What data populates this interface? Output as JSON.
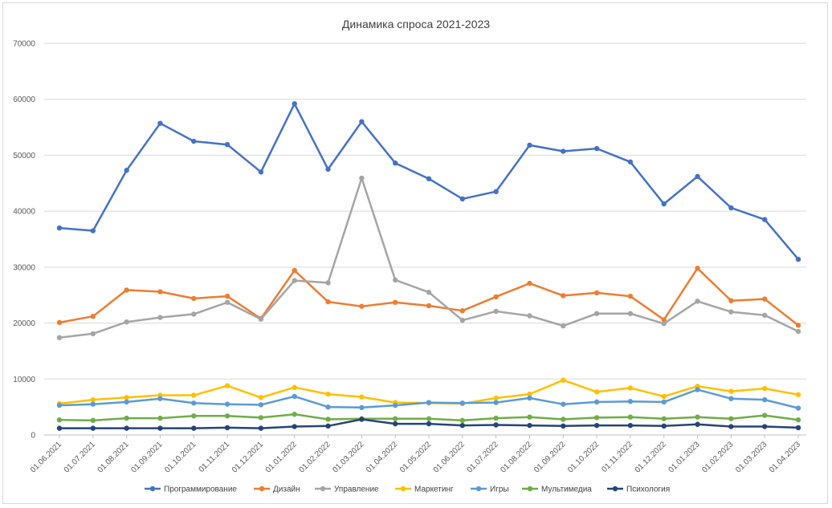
{
  "chart_data": {
    "type": "line",
    "title": "Динамика спроса 2021-2023",
    "xlabel": "",
    "ylabel": "",
    "ylim": [
      0,
      70000
    ],
    "yticks": [
      0,
      10000,
      20000,
      30000,
      40000,
      50000,
      60000,
      70000
    ],
    "ytick_labels": [
      "0",
      "10000",
      "20000",
      "30000",
      "40000",
      "50000",
      "60000",
      "70000"
    ],
    "grid": "horizontal",
    "legend_position": "bottom",
    "categories": [
      "01.06.2021",
      "01.07.2021",
      "01.08.2021",
      "01.09.2021",
      "01.10.2021",
      "01.11.2021",
      "01.12.2021",
      "01.01.2022",
      "01.02.2022",
      "01.03.2022",
      "01.04.2022",
      "01.05.2022",
      "01.06.2022",
      "01.07.2022",
      "01.08.2022",
      "01.09.2022",
      "01.10.2022",
      "01.11.2022",
      "01.12.2022",
      "01.01.2023",
      "01.02.2023",
      "01.03.2023",
      "01.04.2023"
    ],
    "series": [
      {
        "name": "Программирование",
        "color": "#4472c4",
        "values": [
          37000,
          36500,
          47300,
          55700,
          52500,
          51900,
          47000,
          59200,
          47500,
          56000,
          48600,
          45800,
          42200,
          43500,
          51800,
          50700,
          51200,
          48800,
          41300,
          46200,
          40600,
          38500,
          31400
        ]
      },
      {
        "name": "Дизайн",
        "color": "#ed7d31",
        "values": [
          20100,
          21200,
          25900,
          25600,
          24400,
          24800,
          20800,
          29400,
          23800,
          23000,
          23700,
          23100,
          22200,
          24700,
          27100,
          24900,
          25400,
          24800,
          20600,
          29800,
          24000,
          24300,
          19600
        ]
      },
      {
        "name": "Управление",
        "color": "#a5a5a5",
        "values": [
          17400,
          18100,
          20200,
          21000,
          21600,
          23700,
          20700,
          27600,
          27200,
          45900,
          27700,
          25500,
          20500,
          22100,
          21300,
          19500,
          21700,
          21700,
          19900,
          23900,
          22000,
          21400,
          18500
        ]
      },
      {
        "name": "Маркетинг",
        "color": "#ffc000",
        "values": [
          5600,
          6300,
          6700,
          7100,
          7100,
          8800,
          6700,
          8500,
          7300,
          6800,
          5800,
          5700,
          5600,
          6600,
          7300,
          9800,
          7700,
          8400,
          6900,
          8700,
          7800,
          8300,
          7200
        ]
      },
      {
        "name": "Игры",
        "color": "#5b9bd5",
        "values": [
          5300,
          5500,
          5900,
          6500,
          5700,
          5500,
          5400,
          6900,
          5000,
          4900,
          5300,
          5800,
          5700,
          5800,
          6600,
          5500,
          5900,
          6000,
          5900,
          8100,
          6500,
          6300,
          4800
        ]
      },
      {
        "name": "Мультимедиа",
        "color": "#70ad47",
        "values": [
          2700,
          2600,
          3000,
          3000,
          3400,
          3400,
          3100,
          3700,
          2800,
          2900,
          2900,
          2900,
          2600,
          3000,
          3200,
          2800,
          3100,
          3200,
          2900,
          3200,
          2900,
          3500,
          2700
        ]
      },
      {
        "name": "Психология",
        "color": "#264478",
        "values": [
          1200,
          1200,
          1200,
          1200,
          1200,
          1300,
          1200,
          1500,
          1600,
          2800,
          2000,
          2000,
          1700,
          1800,
          1700,
          1600,
          1700,
          1700,
          1600,
          1900,
          1500,
          1500,
          1300
        ]
      }
    ]
  }
}
